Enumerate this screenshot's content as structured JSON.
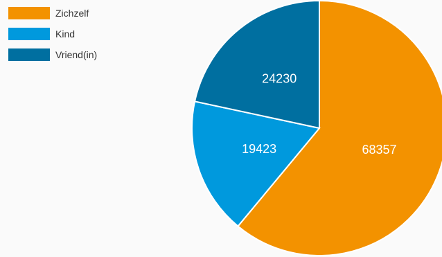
{
  "chart_data": {
    "type": "pie",
    "title": "",
    "series": [
      {
        "name": "Zichzelf",
        "value": 68357,
        "color": "#f39200"
      },
      {
        "name": "Kind",
        "value": 19423,
        "color": "#0099dd"
      },
      {
        "name": "Vriend(in)",
        "value": 24230,
        "color": "#006fa0"
      }
    ],
    "legend_position": "top-left",
    "slice_order": "clockwise from top",
    "data_labels": "values inside slices"
  }
}
